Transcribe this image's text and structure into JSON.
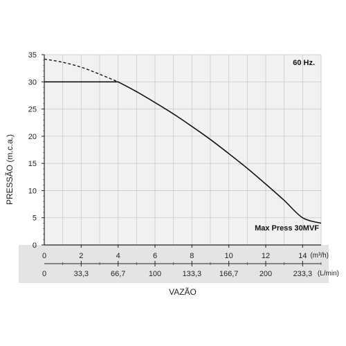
{
  "chart_data": {
    "type": "line",
    "annotation_frequency": "60 Hz.",
    "series_label": "Max Press 30MVF",
    "ylabel": "PRESSÃO (m.c.a.)",
    "xlabel": "VAZÃO",
    "ylim": [
      0,
      35
    ],
    "xlim": [
      0,
      15
    ],
    "y_ticks": [
      "0",
      "5",
      "10",
      "15",
      "20",
      "25",
      "30",
      "35"
    ],
    "x_ticks_m3h": [
      "0",
      "2",
      "4",
      "6",
      "8",
      "10",
      "12",
      "14"
    ],
    "x_unit_m3h": "(m³/h)",
    "x_ticks_lmin": [
      "0",
      "33,3",
      "66,7",
      "100",
      "133,3",
      "166,7",
      "200",
      "233,3"
    ],
    "x_unit_lmin": "(L/min)",
    "grid": true,
    "series": [
      {
        "style": "solid",
        "x": [
          0,
          4,
          5,
          6,
          7,
          8,
          9,
          10,
          11,
          12,
          13,
          14,
          15
        ],
        "y": [
          30,
          30,
          28.2,
          26.2,
          24.1,
          21.8,
          19.4,
          16.8,
          14.1,
          11.2,
          8.2,
          5.0,
          4.0
        ]
      },
      {
        "style": "dashed",
        "x": [
          0,
          1,
          2,
          3,
          4
        ],
        "y": [
          34.2,
          33.6,
          32.7,
          31.4,
          30
        ]
      }
    ]
  }
}
